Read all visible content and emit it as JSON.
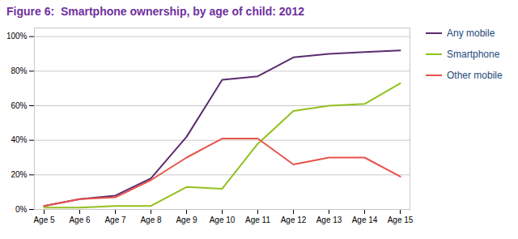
{
  "chart_data": {
    "type": "line",
    "title": "Figure 6:  Smartphone ownership, by age of child: 2012",
    "categories": [
      "Age 5",
      "Age 6",
      "Age 7",
      "Age 8",
      "Age 9",
      "Age 10",
      "Age 11",
      "Age 12",
      "Age 13",
      "Age 14",
      "Age 15"
    ],
    "series": [
      {
        "name": "Any mobile",
        "color": "#5B2C6F",
        "values": [
          2,
          6,
          8,
          18,
          42,
          75,
          77,
          88,
          90,
          91,
          92
        ]
      },
      {
        "name": "Smartphone",
        "color": "#92C01F",
        "values": [
          1,
          1,
          2,
          2,
          13,
          12,
          38,
          57,
          60,
          61,
          73
        ]
      },
      {
        "name": "Other mobile",
        "color": "#E8534A",
        "values": [
          2,
          6,
          7,
          17,
          30,
          41,
          41,
          26,
          30,
          30,
          19
        ]
      }
    ],
    "ylim": [
      0,
      105
    ],
    "yticks": [
      {
        "value": 0,
        "label": "0%"
      },
      {
        "value": 20,
        "label": "20%"
      },
      {
        "value": 40,
        "label": "40%"
      },
      {
        "value": 60,
        "label": "60%"
      },
      {
        "value": 80,
        "label": "80%"
      },
      {
        "value": 100,
        "label": "100%"
      }
    ],
    "grid": true,
    "legend": "right"
  }
}
